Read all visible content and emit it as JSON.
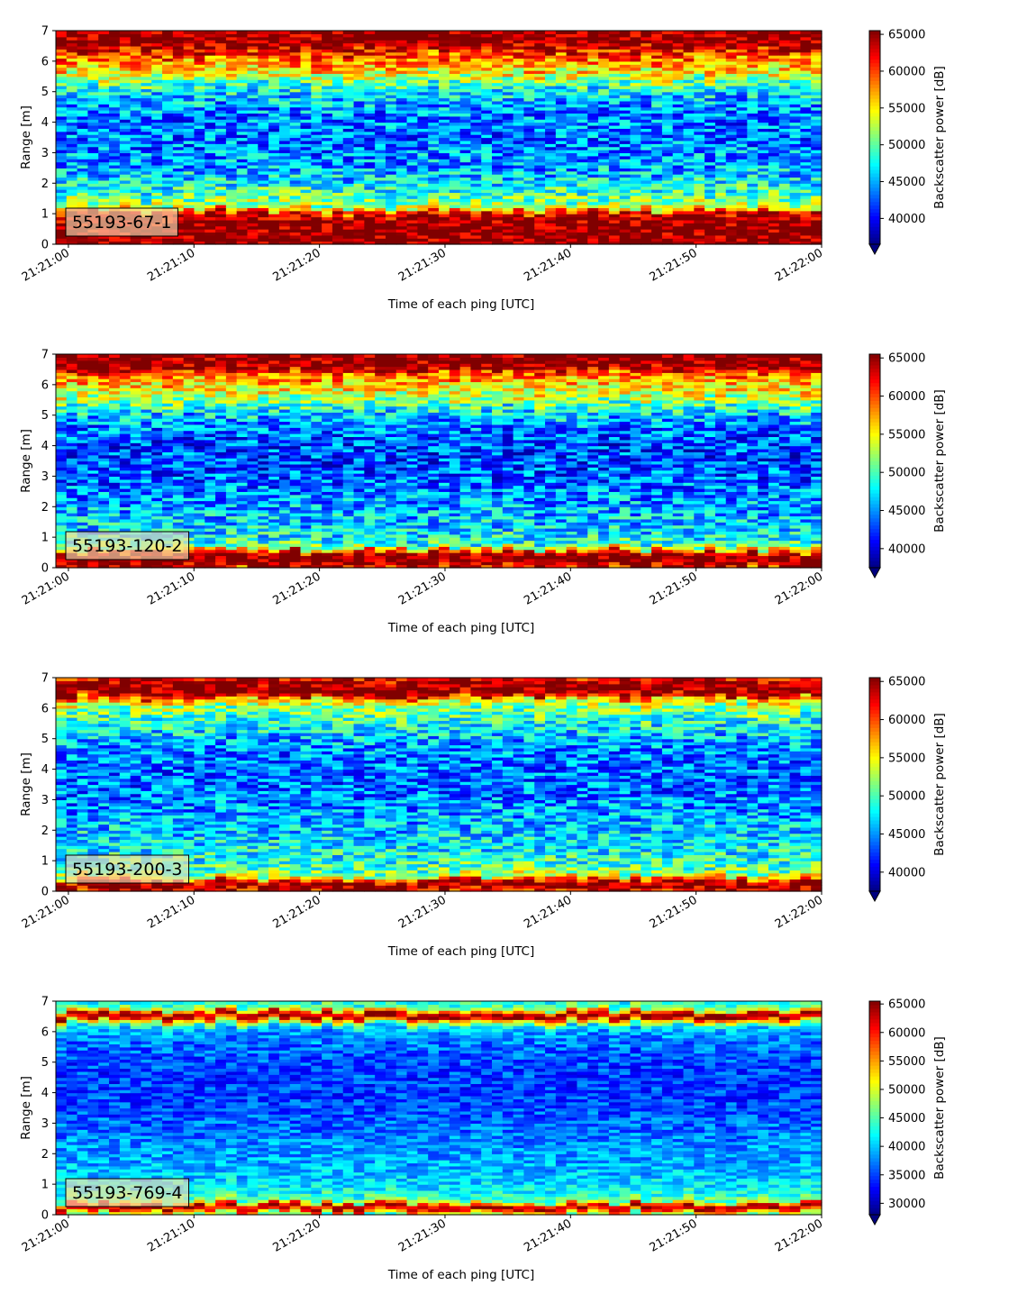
{
  "chart_data": [
    {
      "type": "heatmap",
      "label": "55193-67-1",
      "xlabel": "Time of each ping [UTC]",
      "ylabel": "Range [m]",
      "x_ticks": [
        "21:21:00",
        "21:21:10",
        "21:21:20",
        "21:21:30",
        "21:21:40",
        "21:21:50",
        "21:22:00"
      ],
      "xlim": [
        "21:20:59",
        "21:22:00"
      ],
      "y_ticks": [
        0,
        1,
        2,
        3,
        4,
        5,
        6,
        7
      ],
      "ylim": [
        0,
        7
      ],
      "colorbar": {
        "label": "Backscatter power [dB]",
        "ticks": [
          40000,
          45000,
          50000,
          55000,
          60000,
          65000
        ],
        "range": [
          36500,
          65500
        ],
        "extend": "min",
        "colormap": "jet"
      },
      "profile": {
        "range_m": [
          0.0,
          0.2,
          0.3,
          0.6,
          0.8,
          1.0,
          1.1,
          1.2,
          1.4,
          1.7,
          2.0,
          2.5,
          3.0,
          3.5,
          4.0,
          4.5,
          5.0,
          5.3,
          5.5,
          5.8,
          6.0,
          6.2,
          6.4,
          6.5,
          6.7,
          7.0
        ],
        "power_db": [
          65500,
          65500,
          65500,
          65500,
          65000,
          63000,
          60000,
          54000,
          51000,
          49000,
          47000,
          45000,
          44000,
          43500,
          43500,
          44500,
          47000,
          50000,
          53000,
          56000,
          58000,
          60000,
          62000,
          65000,
          65500,
          65500
        ],
        "variability": 5000
      }
    },
    {
      "type": "heatmap",
      "label": "55193-120-2",
      "xlabel": "Time of each ping [UTC]",
      "ylabel": "Range [m]",
      "x_ticks": [
        "21:21:00",
        "21:21:10",
        "21:21:20",
        "21:21:30",
        "21:21:40",
        "21:21:50",
        "21:22:00"
      ],
      "xlim": [
        "21:20:59",
        "21:22:00"
      ],
      "y_ticks": [
        0,
        1,
        2,
        3,
        4,
        5,
        6,
        7
      ],
      "ylim": [
        0,
        7
      ],
      "colorbar": {
        "label": "Backscatter power [dB]",
        "ticks": [
          40000,
          45000,
          50000,
          55000,
          60000,
          65000
        ],
        "range": [
          37500,
          65500
        ],
        "extend": "min",
        "colormap": "jet"
      },
      "profile": {
        "range_m": [
          0.0,
          0.1,
          0.4,
          0.5,
          0.6,
          0.7,
          0.8,
          1.0,
          1.5,
          2.0,
          2.5,
          3.0,
          3.5,
          4.0,
          4.5,
          5.0,
          5.3,
          5.6,
          5.9,
          6.2,
          6.4,
          6.5,
          6.7,
          7.0
        ],
        "power_db": [
          60000,
          65500,
          65500,
          63000,
          57000,
          52000,
          49500,
          48000,
          46500,
          45500,
          44500,
          43500,
          43000,
          43000,
          44000,
          46500,
          49500,
          53000,
          55500,
          57500,
          60000,
          64000,
          65500,
          65000
        ],
        "variability": 4800
      }
    },
    {
      "type": "heatmap",
      "label": "55193-200-3",
      "xlabel": "Time of each ping [UTC]",
      "ylabel": "Range [m]",
      "x_ticks": [
        "21:21:00",
        "21:21:10",
        "21:21:20",
        "21:21:30",
        "21:21:40",
        "21:21:50",
        "21:22:00"
      ],
      "xlim": [
        "21:20:59",
        "21:22:00"
      ],
      "y_ticks": [
        0,
        1,
        2,
        3,
        4,
        5,
        6,
        7
      ],
      "ylim": [
        0,
        7
      ],
      "colorbar": {
        "label": "Backscatter power [dB]",
        "ticks": [
          40000,
          45000,
          50000,
          55000,
          60000,
          65000
        ],
        "range": [
          37500,
          65500
        ],
        "extend": "min",
        "colormap": "jet"
      },
      "profile": {
        "range_m": [
          0.0,
          0.2,
          0.3,
          0.4,
          0.5,
          0.7,
          1.0,
          1.5,
          2.0,
          2.5,
          3.0,
          3.5,
          4.0,
          4.5,
          5.0,
          5.5,
          6.0,
          6.3,
          6.4,
          6.6,
          6.8,
          7.0
        ],
        "power_db": [
          62000,
          65500,
          65000,
          60000,
          54000,
          50500,
          49000,
          47500,
          46500,
          45500,
          44500,
          44000,
          44000,
          44500,
          46000,
          48500,
          51500,
          56000,
          63000,
          65500,
          65500,
          62000
        ],
        "variability": 4600
      }
    },
    {
      "type": "heatmap",
      "label": "55193-769-4",
      "xlabel": "Time of each ping [UTC]",
      "ylabel": "Range [m]",
      "x_ticks": [
        "21:21:00",
        "21:21:10",
        "21:21:20",
        "21:21:30",
        "21:21:40",
        "21:21:50",
        "21:22:00"
      ],
      "xlim": [
        "21:20:59",
        "21:22:00"
      ],
      "y_ticks": [
        0,
        1,
        2,
        3,
        4,
        5,
        6,
        7
      ],
      "ylim": [
        0,
        7
      ],
      "colorbar": {
        "label": "Backscatter power [dB]",
        "ticks": [
          30000,
          35000,
          40000,
          45000,
          50000,
          55000,
          60000,
          65000
        ],
        "range": [
          28000,
          65500
        ],
        "extend": "min",
        "colormap": "jet"
      },
      "profile": {
        "range_m": [
          0.0,
          0.15,
          0.25,
          0.35,
          0.45,
          0.7,
          1.0,
          1.5,
          2.0,
          2.5,
          3.0,
          3.5,
          4.0,
          4.5,
          5.0,
          5.5,
          6.0,
          6.2,
          6.4,
          6.5,
          6.6,
          6.75,
          6.9,
          7.0
        ],
        "power_db": [
          45000,
          58000,
          65500,
          60000,
          47000,
          43000,
          41000,
          39500,
          38500,
          37500,
          36500,
          35500,
          35000,
          35000,
          35500,
          36500,
          38500,
          42000,
          55000,
          65500,
          64000,
          48000,
          44000,
          43000
        ],
        "variability": 3800
      }
    }
  ]
}
